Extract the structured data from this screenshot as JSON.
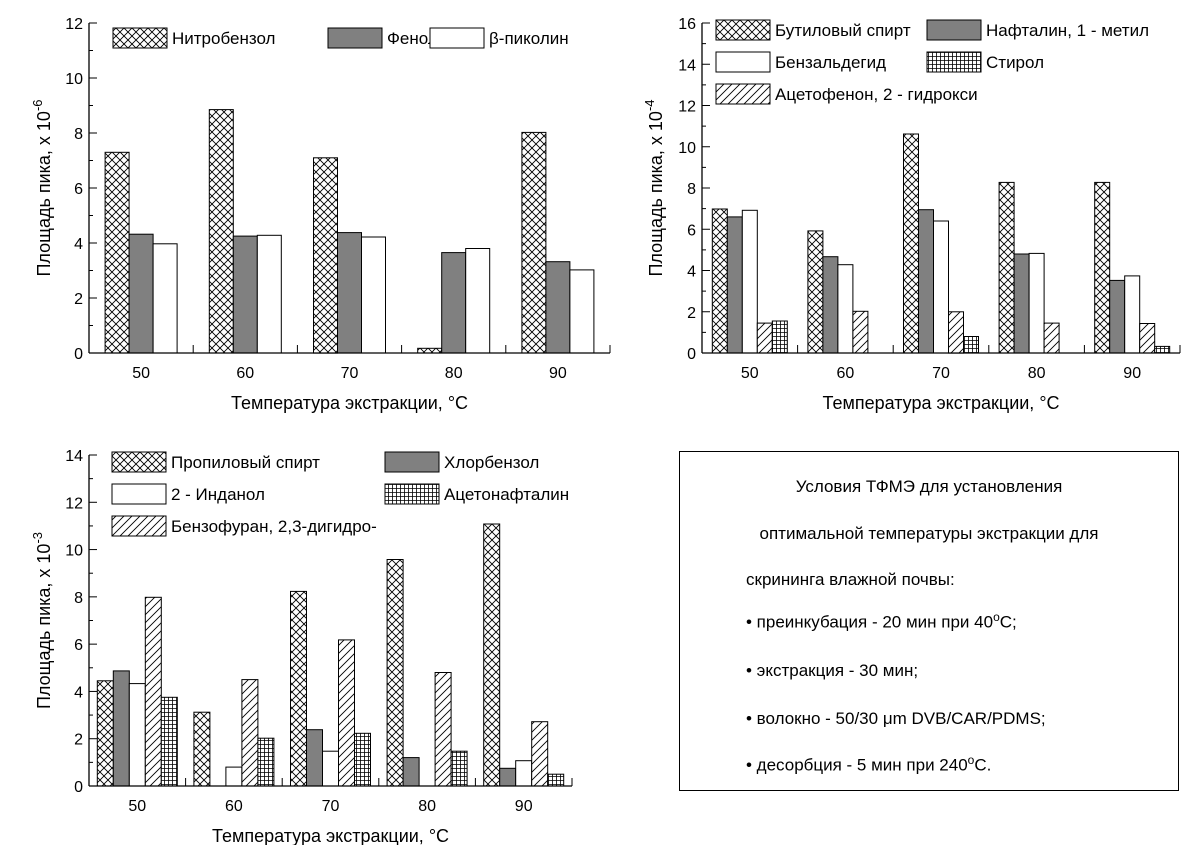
{
  "colors": {
    "axis": "#000000",
    "grey_fill": "#808080",
    "white_fill": "#ffffff"
  },
  "chart_data": [
    {
      "type": "bar",
      "categories": [
        "50",
        "60",
        "70",
        "80",
        "90"
      ],
      "xlabel": "Температура экстракции, °C",
      "ylabel": "Площадь пика, x 10",
      "ylabel_exponent": "-6",
      "ylim": [
        0,
        12
      ],
      "yticks": [
        "0",
        "2",
        "4",
        "6",
        "8",
        "10",
        "12"
      ],
      "legend_placement": "top",
      "series": [
        {
          "name": "Нитробензол",
          "pattern": "crosshatch",
          "values": [
            7.3,
            8.85,
            7.1,
            0.17,
            8.02
          ]
        },
        {
          "name": "Фенол",
          "pattern": "grey",
          "values": [
            4.32,
            4.25,
            4.38,
            3.65,
            3.32
          ]
        },
        {
          "name": "β-пиколин",
          "pattern": "white",
          "values": [
            3.97,
            4.28,
            4.22,
            3.8,
            3.02
          ]
        }
      ]
    },
    {
      "type": "bar",
      "categories": [
        "50",
        "60",
        "70",
        "80",
        "90"
      ],
      "xlabel": "Температура экстракции, °C",
      "ylabel": "Площадь пика, x 10",
      "ylabel_exponent": "-4",
      "ylim": [
        0,
        16
      ],
      "yticks": [
        "0",
        "2",
        "4",
        "6",
        "8",
        "10",
        "12",
        "14",
        "16"
      ],
      "legend_placement": "top",
      "series": [
        {
          "name": "Бутиловый спирт",
          "pattern": "crosshatch",
          "values": [
            6.98,
            5.92,
            10.62,
            8.27,
            8.27
          ]
        },
        {
          "name": "Нафталин, 1 - метил",
          "pattern": "grey",
          "values": [
            6.6,
            4.67,
            6.95,
            4.8,
            3.52
          ]
        },
        {
          "name": "Бензальдегид",
          "pattern": "white",
          "values": [
            6.92,
            4.28,
            6.4,
            4.83,
            3.74
          ]
        },
        {
          "name": "Ацетофенон, 2 - гидрокси",
          "pattern": "diagonal",
          "values": [
            1.45,
            2.02,
            2.0,
            1.45,
            1.43
          ]
        },
        {
          "name": "Стирол",
          "pattern": "grid",
          "values": [
            1.55,
            0,
            0.8,
            0,
            0.32
          ]
        }
      ]
    },
    {
      "type": "bar",
      "categories": [
        "50",
        "60",
        "70",
        "80",
        "90"
      ],
      "xlabel": "Температура экстракции, °C",
      "ylabel": "Площадь пика, x 10",
      "ylabel_exponent": "-3",
      "ylim": [
        0,
        14
      ],
      "yticks": [
        "0",
        "2",
        "4",
        "6",
        "8",
        "10",
        "12",
        "14"
      ],
      "legend_placement": "top",
      "series": [
        {
          "name": "Пропиловый спирт",
          "pattern": "crosshatch",
          "values": [
            4.45,
            3.12,
            8.23,
            9.58,
            11.08
          ]
        },
        {
          "name": "Хлорбензол",
          "pattern": "grey",
          "values": [
            4.87,
            0,
            2.38,
            1.2,
            0.75
          ]
        },
        {
          "name": "2 - Инданол",
          "pattern": "white",
          "values": [
            4.33,
            0.8,
            1.47,
            0,
            1.07
          ]
        },
        {
          "name": "Бензофуран, 2,3-дигидро-",
          "pattern": "diagonal",
          "values": [
            7.98,
            4.5,
            6.18,
            4.8,
            2.72
          ]
        },
        {
          "name": "Ацетонафталин",
          "pattern": "grid",
          "values": [
            3.75,
            2.02,
            2.23,
            1.47,
            0.5
          ]
        }
      ]
    }
  ],
  "conditions": {
    "heading_line1": "Условия ТФМЭ для установления",
    "heading_line2": "оптимальной температуры экстракции для",
    "heading_line3": "скрининга  влажной почвы:",
    "bullet1_text": "• преинкубация - 20 мин при 40",
    "bullet1_suffix": "C;",
    "bullet2_text": "• экстракция - 30 мин;",
    "bullet3_text": "• волокно - 50/30 μm DVB/CAR/PDMS;",
    "bullet4_text": "• десорбция - 5 мин при 240",
    "bullet4_suffix": "C.",
    "degree_sign": "o"
  }
}
